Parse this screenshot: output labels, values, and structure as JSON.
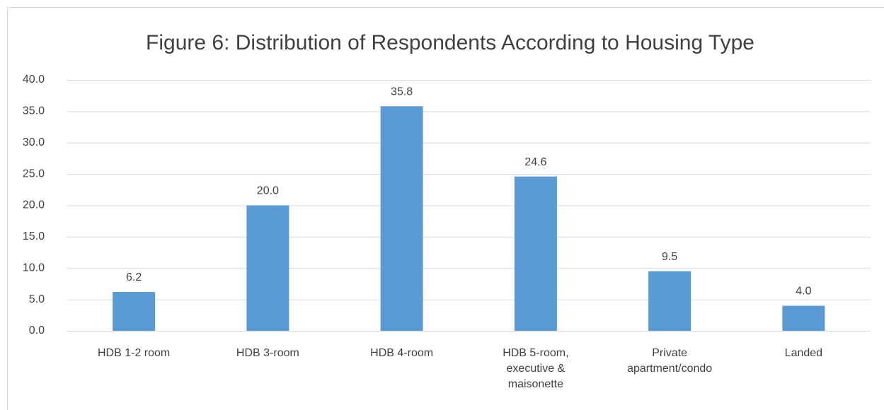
{
  "chart_data": {
    "type": "bar",
    "title": "Figure 6: Distribution of Respondents According to Housing Type",
    "categories": [
      "HDB 1-2 room",
      "HDB 3-room",
      "HDB 4-room",
      "HDB 5-room, executive & maisonette",
      "Private apartment/condo",
      "Landed"
    ],
    "values": [
      6.2,
      20,
      35.8,
      24.6,
      9.5,
      4
    ],
    "value_labels": [
      "6.2",
      "20.0",
      "35.8",
      "24.6",
      "9.5",
      "4.0"
    ],
    "color": "#5b9bd5",
    "ylim": [
      0,
      40
    ],
    "yticks": [
      {
        "value": 0,
        "label": "0.0"
      },
      {
        "value": 5,
        "label": "5.0"
      },
      {
        "value": 10,
        "label": "10.0"
      },
      {
        "value": 15,
        "label": "15.0"
      },
      {
        "value": 20,
        "label": "20.0"
      },
      {
        "value": 25,
        "label": "25.0"
      },
      {
        "value": 30,
        "label": "30.0"
      },
      {
        "value": 35,
        "label": "35.0"
      },
      {
        "value": 40,
        "label": "40.0"
      }
    ],
    "grid": true
  }
}
